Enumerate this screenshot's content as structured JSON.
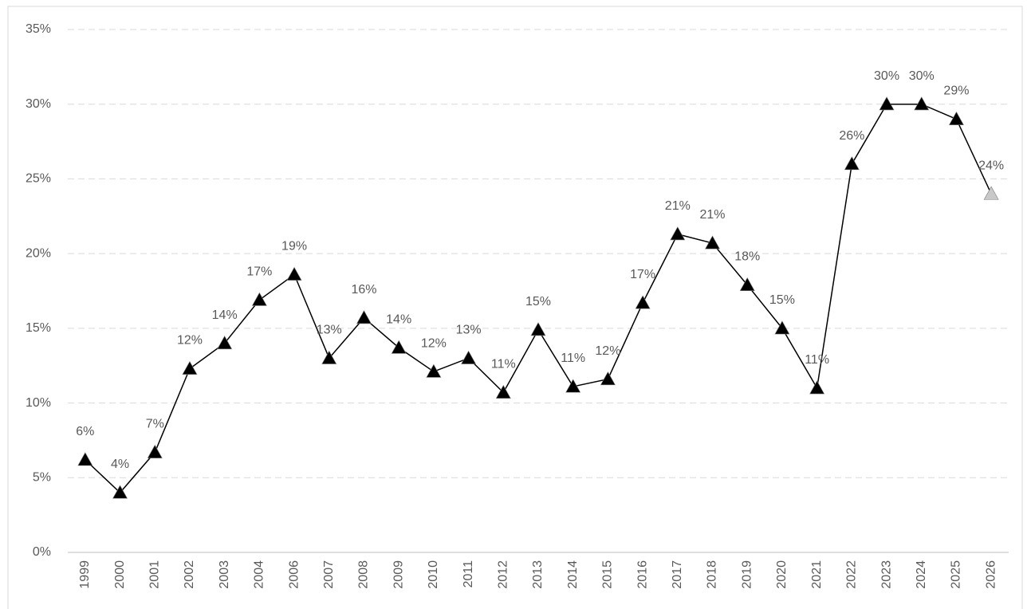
{
  "chart_data": {
    "type": "line",
    "categories": [
      "1999",
      "2000",
      "2001",
      "2002",
      "2003",
      "2004",
      "2006",
      "2007",
      "2008",
      "2009",
      "2010",
      "2011",
      "2012",
      "2013",
      "2014",
      "2015",
      "2016",
      "2017",
      "2018",
      "2019",
      "2020",
      "2021",
      "2022",
      "2023",
      "2024",
      "2025",
      "2026"
    ],
    "series": [
      {
        "color": "#000000",
        "values": [
          6.2,
          4.0,
          6.7,
          12.3,
          14.0,
          16.9,
          18.6,
          13.0,
          15.7,
          13.7,
          12.1,
          13.0,
          10.7,
          14.9,
          11.1,
          11.6,
          16.7,
          21.3,
          20.7,
          17.9,
          15.0,
          11.0,
          26.0,
          30.0,
          30.0,
          29.0,
          24.0
        ],
        "value_labels": [
          "6%",
          "4%",
          "7%",
          "12%",
          "14%",
          "17%",
          "19%",
          "13%",
          "16%",
          "14%",
          "12%",
          "13%",
          "11%",
          "15%",
          "11%",
          "12%",
          "17%",
          "21%",
          "21%",
          "18%",
          "15%",
          "11%",
          "26%",
          "30%",
          "30%",
          "29%",
          "24%"
        ],
        "marker_colors": [
          "#000000",
          "#000000",
          "#000000",
          "#000000",
          "#000000",
          "#000000",
          "#000000",
          "#000000",
          "#000000",
          "#000000",
          "#000000",
          "#000000",
          "#000000",
          "#000000",
          "#000000",
          "#000000",
          "#000000",
          "#000000",
          "#000000",
          "#000000",
          "#000000",
          "#000000",
          "#000000",
          "#000000",
          "#000000",
          "#000000",
          "#c8c8c8"
        ]
      }
    ],
    "ylim": [
      0,
      35
    ],
    "yticks": [
      {
        "value": 0,
        "label": "0%"
      },
      {
        "value": 5,
        "label": "5%"
      },
      {
        "value": 10,
        "label": "10%"
      },
      {
        "value": 15,
        "label": "15%"
      },
      {
        "value": 20,
        "label": "20%"
      },
      {
        "value": 25,
        "label": "25%"
      },
      {
        "value": 30,
        "label": "30%"
      },
      {
        "value": 35,
        "label": "35%"
      }
    ],
    "grid": true
  }
}
